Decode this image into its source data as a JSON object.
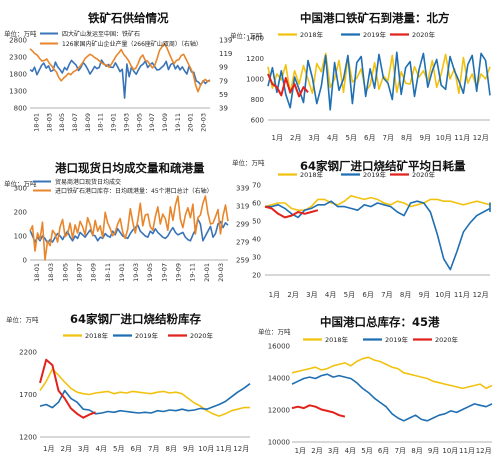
{
  "colors": {
    "y2018": "#f2c211",
    "y2019": "#1f6fb2",
    "y2020": "#e0231c",
    "blue": "#3a74b8",
    "orange": "#e8862c",
    "axis": "#999999"
  },
  "chart_data": [
    {
      "type": "line",
      "title": "铁矿石供给情况",
      "unit_label": "单位：万吨",
      "x_tick_labels": [
        "18-01",
        "18-03",
        "18-05",
        "18-07",
        "18-09",
        "18-11",
        "19-01",
        "19-03",
        "19-05",
        "19-07",
        "19-09",
        "19-11",
        "20-01",
        "20-03"
      ],
      "left_ticks": [
        "2800",
        "2300",
        "1800",
        "1300",
        "800"
      ],
      "right_ticks": [
        "139",
        "119",
        "99",
        "79",
        "59",
        "39"
      ],
      "ylim_left": [
        800,
        2800
      ],
      "ylim_right": [
        39,
        139
      ],
      "series": [
        {
          "name": "四大矿山发运至中国：铁矿石",
          "axis": "left",
          "color": "blue",
          "values": [
            1930,
            1880,
            2000,
            1780,
            1910,
            2050,
            2120,
            1970,
            2040,
            1880,
            1910,
            2150,
            2010,
            1930,
            1830,
            1990,
            1920,
            2080,
            2200,
            2130,
            2060,
            1900,
            1990,
            2140,
            2060,
            1940,
            1800,
            1900,
            2020,
            1960,
            1990,
            2210,
            2110,
            2030,
            2080,
            2000,
            1990,
            2130,
            2010,
            1870,
            1940,
            1090,
            2090,
            1720,
            2010,
            1880,
            1790,
            1930,
            2040,
            2090,
            2180,
            1990,
            2070,
            2130,
            2020,
            1920,
            1930,
            1990,
            2050,
            2170,
            1930,
            2080,
            2120,
            1950,
            2050,
            1920,
            2010,
            1890,
            1800,
            2040,
            1860,
            1850,
            1600,
            1560,
            1480,
            1600,
            1520,
            1590,
            1620
          ]
        },
        {
          "name": "126家国内矿山企业产量（266座矿山双周）（右轴）",
          "axis": "right",
          "color": "orange",
          "values": [
            126,
            123,
            119,
            117,
            112,
            108,
            109,
            111,
            105,
            101,
            96,
            92,
            84,
            79,
            83,
            86,
            90,
            88,
            92,
            94,
            97,
            101,
            106,
            112,
            115,
            118,
            116,
            113,
            111,
            108,
            105,
            103,
            102,
            99,
            104,
            110,
            116,
            120,
            125,
            118,
            114,
            109,
            102,
            96,
            97,
            104,
            113,
            117,
            109,
            108,
            103,
            98,
            102,
            112,
            124,
            129,
            134,
            128,
            119,
            111,
            104,
            109,
            110,
            116,
            118,
            111,
            104,
            97,
            89,
            73,
            63,
            72,
            78,
            81,
            78,
            79
          ]
        }
      ]
    },
    {
      "type": "line",
      "title": "中国港口铁矿石到港量：北方",
      "unit_label": "单位：万吨",
      "x_tick_labels": [
        "1月",
        "2月",
        "3月",
        "4月",
        "5月",
        "6月",
        "7月",
        "8月",
        "9月",
        "10月",
        "11月",
        "12月"
      ],
      "y_ticks": [
        "1400",
        "1200",
        "1000",
        "800",
        "600"
      ],
      "ylim": [
        600,
        1400
      ],
      "series": [
        {
          "name": "2018年",
          "color": "y2018",
          "values": [
            1120,
            910,
            1050,
            990,
            1140,
            860,
            1080,
            950,
            1130,
            1000,
            860,
            1150,
            1070,
            1250,
            920,
            1000,
            1180,
            870,
            1210,
            970,
            1010,
            1100,
            880,
            940,
            1160,
            900,
            1030,
            980,
            1230,
            870,
            1070,
            960,
            950,
            1120,
            1020,
            1080,
            980,
            1180,
            920,
            1050,
            1240,
            1000,
            1100,
            860,
            1210,
            960,
            1050,
            920,
            1050,
            1000,
            1120
          ]
        },
        {
          "name": "2019年",
          "color": "y2019",
          "values": [
            930,
            1110,
            870,
            1080,
            850,
            720,
            1020,
            900,
            770,
            1180,
            1010,
            760,
            930,
            1230,
            700,
            1160,
            890,
            1000,
            1230,
            760,
            1160,
            1220,
            830,
            1100,
            910,
            1240,
            1010,
            960,
            800,
            1260,
            850,
            1110,
            1170,
            830,
            1090,
            1250,
            920,
            1080,
            1190,
            940,
            900,
            1220,
            1080,
            980,
            860,
            1140,
            1230,
            880,
            1250,
            1180,
            840
          ]
        },
        {
          "name": "2020年",
          "color": "y2020",
          "values": [
            1050,
            950,
            920,
            840,
            1010,
            870,
            950,
            830,
            920,
            870
          ]
        }
      ]
    },
    {
      "type": "line",
      "title": "港口现货日均成交量和疏港量",
      "unit_label": "单位：万吨",
      "x_tick_labels": [
        "18-01",
        "18-03",
        "18-05",
        "18-07",
        "18-09",
        "18-11",
        "19-01",
        "19-03",
        "19-05",
        "19-07",
        "19-09",
        "19-11",
        "20-01",
        "20-03"
      ],
      "left_ticks": [
        "300",
        "200",
        "100",
        "0"
      ],
      "right_ticks": [
        "339",
        "319",
        "299",
        "279",
        "259"
      ],
      "ylim_left": [
        0,
        300
      ],
      "ylim_right": [
        259,
        339
      ],
      "series": [
        {
          "name": "贸易商港口现货日均成交",
          "axis": "left",
          "color": "blue",
          "values": [
            125,
            100,
            75,
            95,
            80,
            100,
            90,
            70,
            85,
            75,
            95,
            110,
            100,
            85,
            105,
            120,
            95,
            80,
            100,
            90,
            115,
            105,
            95,
            110,
            125,
            105,
            100,
            80,
            95,
            90,
            110,
            100,
            95,
            120,
            105,
            130,
            115,
            100,
            95,
            90,
            110,
            125,
            135,
            145,
            120,
            110,
            100,
            95,
            120,
            110,
            130,
            115,
            105,
            95,
            90,
            100,
            120,
            135,
            115,
            105,
            110,
            115,
            95,
            85,
            80,
            105,
            125,
            170,
            150,
            80,
            100,
            120,
            140,
            95,
            110,
            150,
            160,
            135,
            155,
            145
          ]
        },
        {
          "name": "进口铁矿石港口库存：日均疏港量：45个港口总计（右轴）",
          "axis": "right",
          "color": "orange",
          "values": [
            291,
            297,
            269,
            289,
            282,
            301,
            259,
            280,
            275,
            292,
            288,
            279,
            296,
            304,
            285,
            288,
            300,
            283,
            298,
            289,
            302,
            296,
            287,
            306,
            298,
            286,
            303,
            291,
            297,
            284,
            312,
            300,
            294,
            286,
            290,
            299,
            305,
            290,
            283,
            293,
            316,
            301,
            289,
            303,
            322,
            297,
            309,
            310,
            296,
            292,
            307,
            318,
            299,
            310,
            305,
            292,
            318,
            303,
            320,
            330,
            304,
            295,
            309,
            317,
            306,
            321,
            288,
            306,
            309,
            322,
            330,
            311,
            299,
            300,
            307,
            315,
            288,
            308,
            320,
            302
          ]
        }
      ]
    },
    {
      "type": "line",
      "title": "64家钢厂进口烧结矿平均日耗量",
      "unit_label": "单位：万吨",
      "x_tick_labels": [
        "1月",
        "2月",
        "3月",
        "4月",
        "5月",
        "6月",
        "7月",
        "8月",
        "9月",
        "10月",
        "11月",
        "12月"
      ],
      "y_ticks": [
        "70",
        "60",
        "50",
        "40",
        "30",
        "20"
      ],
      "ylim": [
        20,
        70
      ],
      "series": [
        {
          "name": "2018年",
          "color": "y2018",
          "values": [
            58,
            59,
            60,
            60,
            57,
            56,
            56,
            58,
            62,
            62,
            60,
            59,
            61,
            64,
            63,
            62,
            63,
            62,
            60,
            59,
            61,
            60,
            58,
            59,
            60,
            62,
            62,
            61,
            61,
            60,
            59,
            60,
            61,
            60,
            59
          ]
        },
        {
          "name": "2019年",
          "color": "y2019",
          "values": [
            58,
            58,
            59,
            57,
            54,
            52,
            56,
            57,
            59,
            59,
            61,
            58,
            58,
            57,
            56,
            59,
            58,
            60,
            59,
            58,
            55,
            53,
            60,
            61,
            60,
            55,
            43,
            29,
            23,
            33,
            44,
            49,
            53,
            55,
            57,
            58,
            59,
            60,
            60,
            59,
            59,
            56,
            55
          ]
        },
        {
          "name": "2020年",
          "color": "y2020",
          "values": [
            58,
            57,
            54,
            52,
            53,
            55,
            54,
            55,
            56
          ]
        }
      ]
    },
    {
      "type": "line",
      "title": "64家钢厂进口烧结粉库存",
      "unit_label": "单位：万吨",
      "x_tick_labels": [
        "1月",
        "2月",
        "3月",
        "4月",
        "5月",
        "6月",
        "7月",
        "8月",
        "9月",
        "10月",
        "11月",
        "12月"
      ],
      "y_ticks": [
        "2200",
        "1700",
        "1200"
      ],
      "ylim": [
        1200,
        2300
      ],
      "series": [
        {
          "name": "2018年",
          "color": "y2018",
          "values": [
            1800,
            1920,
            2080,
            2000,
            1910,
            1830,
            1780,
            1760,
            1750,
            1770,
            1780,
            1790,
            1760,
            1780,
            1770,
            1790,
            1780,
            1770,
            1760,
            1780,
            1790,
            1770,
            1780,
            1760,
            1700,
            1640,
            1600,
            1540,
            1500,
            1470,
            1500,
            1540,
            1560,
            1580,
            1580
          ]
        },
        {
          "name": "2019年",
          "color": "y2019",
          "values": [
            1600,
            1620,
            1580,
            1650,
            1800,
            1700,
            1650,
            1560,
            1550,
            1500,
            1510,
            1530,
            1520,
            1540,
            1530,
            1520,
            1510,
            1520,
            1510,
            1540,
            1530,
            1550,
            1540,
            1560,
            1540,
            1550,
            1570,
            1560,
            1590,
            1620,
            1660,
            1720,
            1780,
            1830,
            1890
          ]
        },
        {
          "name": "2020年",
          "color": "y2020",
          "values": [
            1900,
            2200,
            2130,
            1800,
            1700,
            1570,
            1500,
            1450,
            1490,
            1520
          ]
        }
      ]
    },
    {
      "type": "line",
      "title": "中国港口总库存：45港",
      "unit_label": "单位：万吨",
      "x_tick_labels": [
        "1月",
        "2月",
        "3月",
        "4月",
        "5月",
        "6月",
        "7月",
        "8月",
        "9月",
        "10月",
        "11月",
        "12月"
      ],
      "y_ticks": [
        "16000",
        "14000",
        "12000",
        "10000"
      ],
      "ylim": [
        10000,
        16800
      ],
      "series": [
        {
          "name": "2018年",
          "color": "y2018",
          "values": [
            14900,
            15000,
            15100,
            15200,
            15300,
            15100,
            15200,
            15400,
            15500,
            15600,
            15400,
            15700,
            15900,
            16000,
            15800,
            15700,
            15500,
            15300,
            15200,
            14900,
            14800,
            14700,
            14600,
            14500,
            14300,
            14200,
            14100,
            14000,
            13900,
            13800,
            13900,
            14000,
            14100,
            13800,
            14000
          ]
        },
        {
          "name": "2019年",
          "color": "y2019",
          "values": [
            14100,
            14300,
            14500,
            14600,
            14500,
            14700,
            14800,
            14600,
            14700,
            14600,
            14500,
            14200,
            13800,
            13500,
            13100,
            12800,
            12500,
            12000,
            11700,
            11500,
            11700,
            11900,
            11600,
            11500,
            11700,
            11900,
            12000,
            12200,
            12100,
            12300,
            12500,
            12700,
            12600,
            12500,
            12700
          ]
        },
        {
          "name": "2020年",
          "color": "y2020",
          "values": [
            12400,
            12500,
            12400,
            12600,
            12500,
            12300,
            12200,
            12100,
            11900,
            11800
          ]
        }
      ]
    }
  ]
}
